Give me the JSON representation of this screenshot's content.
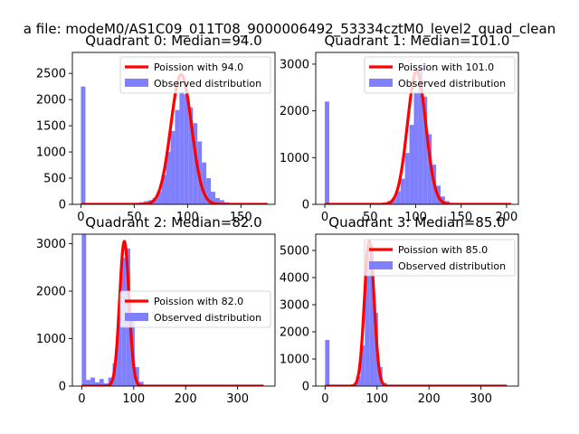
{
  "figure_title": "a file: modeM0/AS1C09_011T08_9000006492_53334cztM0_level2_quad_clean",
  "colors": {
    "histogram": "#8080ff",
    "poisson_line": "#ff0000",
    "axis": "#000000",
    "background": "#ffffff"
  },
  "chart_data": [
    {
      "type": "bar",
      "title": "Quadrant 0: Median=94.0",
      "legend": {
        "line_label": "Poission with 94.0",
        "hist_label": "Observed distribution",
        "placement": "top-right"
      },
      "xlim": [
        -8,
        182
      ],
      "ylim": [
        0,
        2900
      ],
      "xticks": [
        0,
        50,
        100,
        150
      ],
      "yticks": [
        0,
        500,
        1000,
        1500,
        2000,
        2500
      ],
      "bin_width": 4.2,
      "histogram": [
        [
          0,
          2250
        ],
        [
          4.2,
          0
        ],
        [
          8.4,
          0
        ],
        [
          12.6,
          0
        ],
        [
          16.8,
          0
        ],
        [
          21,
          0
        ],
        [
          25.2,
          0
        ],
        [
          29.4,
          0
        ],
        [
          33.6,
          0
        ],
        [
          37.8,
          0
        ],
        [
          42,
          5
        ],
        [
          46.2,
          10
        ],
        [
          50.4,
          20
        ],
        [
          54.6,
          40
        ],
        [
          58.8,
          60
        ],
        [
          63,
          80
        ],
        [
          67.2,
          120
        ],
        [
          71.4,
          250
        ],
        [
          75.6,
          560
        ],
        [
          79.8,
          1000
        ],
        [
          84,
          1400
        ],
        [
          88.2,
          1800
        ],
        [
          92.4,
          2150
        ],
        [
          96.6,
          2100
        ],
        [
          100.8,
          1850
        ],
        [
          105,
          1550
        ],
        [
          109.2,
          1200
        ],
        [
          113.4,
          800
        ],
        [
          117.6,
          500
        ],
        [
          121.8,
          240
        ],
        [
          126,
          120
        ],
        [
          130.2,
          80
        ],
        [
          134.4,
          40
        ],
        [
          138.6,
          20
        ],
        [
          142.8,
          10
        ],
        [
          147,
          5
        ]
      ],
      "poisson": {
        "mean": 94.0,
        "peak": 2480,
        "x_start": 0,
        "x_end": 175
      }
    },
    {
      "type": "bar",
      "title": "Quadrant 1: Median=101.0",
      "legend": {
        "line_label": "Poission with 101.0",
        "hist_label": "Observed distribution",
        "placement": "top-right"
      },
      "xlim": [
        -10,
        213
      ],
      "ylim": [
        0,
        3250
      ],
      "xticks": [
        0,
        50,
        100,
        150,
        200
      ],
      "yticks": [
        0,
        1000,
        2000,
        3000
      ],
      "bin_width": 4.9,
      "histogram": [
        [
          0,
          2200
        ],
        [
          4.9,
          0
        ],
        [
          9.8,
          0
        ],
        [
          14.7,
          0
        ],
        [
          19.6,
          0
        ],
        [
          24.5,
          0
        ],
        [
          29.4,
          0
        ],
        [
          34.3,
          0
        ],
        [
          39.2,
          0
        ],
        [
          44.1,
          0
        ],
        [
          49,
          5
        ],
        [
          53.9,
          10
        ],
        [
          58.8,
          20
        ],
        [
          63.7,
          40
        ],
        [
          68.6,
          70
        ],
        [
          73.5,
          130
        ],
        [
          78.4,
          280
        ],
        [
          83.3,
          550
        ],
        [
          88.2,
          1100
        ],
        [
          93.1,
          1700
        ],
        [
          98,
          2400
        ],
        [
          102.9,
          2900
        ],
        [
          107.8,
          2300
        ],
        [
          112.7,
          1500
        ],
        [
          117.6,
          850
        ],
        [
          122.5,
          400
        ],
        [
          127.4,
          170
        ],
        [
          132.3,
          70
        ],
        [
          137.2,
          30
        ],
        [
          142.1,
          10
        ],
        [
          147,
          5
        ]
      ],
      "poisson": {
        "mean": 101.0,
        "peak": 2850,
        "x_start": 0,
        "x_end": 205
      }
    },
    {
      "type": "bar",
      "title": "Quadrant 2: Median=82.0",
      "legend": {
        "line_label": "Poission with 82.0",
        "hist_label": "Observed distribution",
        "placement": "center-right"
      },
      "xlim": [
        -18,
        372
      ],
      "ylim": [
        0,
        3200
      ],
      "xticks": [
        0,
        100,
        200,
        300
      ],
      "yticks": [
        0,
        1000,
        2000,
        3000
      ],
      "bin_width": 8.5,
      "histogram": [
        [
          0,
          3200
        ],
        [
          8.5,
          130
        ],
        [
          17,
          180
        ],
        [
          25.5,
          80
        ],
        [
          34,
          150
        ],
        [
          42.5,
          60
        ],
        [
          51,
          180
        ],
        [
          59.5,
          480
        ],
        [
          68,
          1450
        ],
        [
          76.5,
          2700
        ],
        [
          85,
          2900
        ],
        [
          93.5,
          1500
        ],
        [
          102,
          400
        ],
        [
          110.5,
          90
        ],
        [
          119,
          20
        ],
        [
          127.5,
          5
        ]
      ],
      "poisson": {
        "mean": 82.0,
        "peak": 3050,
        "x_start": 0,
        "x_end": 350
      }
    },
    {
      "type": "bar",
      "title": "Quadrant 3: Median=85.0",
      "legend": {
        "line_label": "Poission with 85.0",
        "hist_label": "Observed distribution",
        "placement": "top-right"
      },
      "xlim": [
        -18,
        372
      ],
      "ylim": [
        0,
        5600
      ],
      "xticks": [
        0,
        100,
        200,
        300
      ],
      "yticks": [
        0,
        1000,
        2000,
        3000,
        4000,
        5000
      ],
      "bin_width": 8.5,
      "histogram": [
        [
          0,
          1700
        ],
        [
          8.5,
          0
        ],
        [
          17,
          0
        ],
        [
          25.5,
          0
        ],
        [
          34,
          0
        ],
        [
          42.5,
          10
        ],
        [
          51,
          60
        ],
        [
          59.5,
          350
        ],
        [
          68,
          1500
        ],
        [
          76.5,
          4800
        ],
        [
          85,
          5200
        ],
        [
          93.5,
          2700
        ],
        [
          102,
          700
        ],
        [
          110.5,
          120
        ],
        [
          119,
          20
        ],
        [
          127.5,
          5
        ]
      ],
      "poisson": {
        "mean": 85.0,
        "peak": 5350,
        "x_start": 0,
        "x_end": 350
      }
    }
  ]
}
